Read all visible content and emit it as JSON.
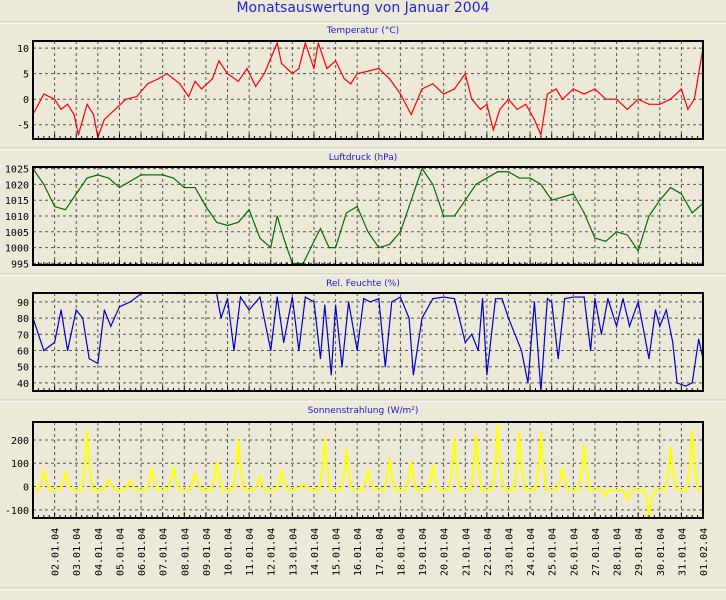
{
  "title": "Monatsauswertung von Januar 2004",
  "x_labels": [
    "02.01.04",
    "03.01.04",
    "04.01.04",
    "05.01.04",
    "06.01.04",
    "07.01.04",
    "08.01.04",
    "09.01.04",
    "10.01.04",
    "11.01.04",
    "12.01.04",
    "13.01.04",
    "14.01.04",
    "15.01.04",
    "16.01.04",
    "17.01.04",
    "18.01.04",
    "19.01.04",
    "20.01.04",
    "21.01.04",
    "22.01.04",
    "23.01.04",
    "24.01.04",
    "25.01.04",
    "26.01.04",
    "27.01.04",
    "28.01.04",
    "29.01.04",
    "30.01.04",
    "31.01.04",
    "01.02.04"
  ],
  "chart_data": [
    {
      "type": "line",
      "title": "Temperatur (°C)",
      "color": "#ff0000",
      "xlim": [
        1,
        32
      ],
      "ylim": [
        -7.8,
        11.4
      ],
      "yticks": [
        10,
        5,
        0,
        -5
      ],
      "x": [
        1,
        1.5,
        2,
        2.3,
        2.6,
        2.9,
        3.1,
        3.5,
        3.8,
        4.0,
        4.3,
        4.8,
        5.3,
        5.8,
        6.3,
        6.8,
        7.2,
        7.8,
        8.2,
        8.5,
        8.8,
        9.3,
        9.6,
        10,
        10.5,
        10.9,
        11.3,
        11.7,
        12.2,
        12.3,
        12.5,
        13,
        13.3,
        13.6,
        14,
        14.2,
        14.6,
        15,
        15.4,
        15.7,
        16,
        16.5,
        17,
        17.5,
        18,
        18.5,
        19,
        19.5,
        20,
        20.5,
        21,
        21.3,
        21.7,
        22,
        22.3,
        22.6,
        23,
        23.4,
        23.8,
        24.2,
        24.5,
        24.8,
        25.2,
        25.5,
        26,
        26.5,
        27,
        27.5,
        28,
        28.5,
        29,
        29.5,
        30,
        30.5,
        31,
        31.3,
        31.6,
        31.8,
        32
      ],
      "y": [
        -3,
        1,
        0,
        -2,
        -1,
        -3,
        -7,
        -1,
        -3,
        -7.5,
        -4,
        -2,
        0,
        0.5,
        3,
        4,
        5,
        3,
        0.5,
        3.5,
        2,
        4,
        7.5,
        5,
        3.5,
        6,
        2.5,
        5,
        10,
        11,
        7,
        5,
        6,
        11,
        6,
        11,
        6,
        7.5,
        4,
        3,
        5,
        5.5,
        6,
        4,
        1,
        -3,
        2,
        3,
        1,
        2,
        5,
        0,
        -2,
        -1,
        -6,
        -2,
        0,
        -2,
        -1,
        -4,
        -7,
        1,
        2,
        0,
        2,
        1,
        2,
        0,
        0,
        -2,
        0,
        -1,
        -1,
        0,
        2,
        -2,
        0,
        5,
        10
      ]
    },
    {
      "type": "line",
      "title": "Luftdruck (hPa)",
      "color": "#007000",
      "xlim": [
        1,
        32
      ],
      "ylim": [
        994.5,
        1025.5
      ],
      "yticks": [
        1025,
        1020,
        1015,
        1010,
        1005,
        1000,
        995
      ],
      "x": [
        1,
        1.5,
        2,
        2.5,
        3,
        3.5,
        4,
        4.5,
        5,
        5.5,
        6,
        7,
        7.5,
        8,
        8.5,
        9,
        9.5,
        10,
        10.5,
        11,
        11.5,
        12,
        12.3,
        12.6,
        13,
        13.5,
        14,
        14.3,
        14.7,
        15,
        15.5,
        16,
        16.5,
        17,
        17.5,
        18,
        18.5,
        19,
        19.5,
        20,
        20.5,
        21,
        21.5,
        22,
        22.5,
        23,
        23.5,
        24,
        24.5,
        25,
        25.5,
        26,
        26.5,
        27,
        27.5,
        28,
        28.5,
        29,
        29.5,
        30,
        30.5,
        31,
        31.5,
        32
      ],
      "y": [
        1025,
        1020,
        1013,
        1012,
        1017,
        1022,
        1023,
        1022,
        1019,
        1021,
        1023,
        1023,
        1022,
        1019,
        1019,
        1013,
        1008,
        1007,
        1008,
        1012,
        1003,
        1000,
        1010,
        1003,
        995,
        995,
        1002,
        1006,
        1000,
        1000,
        1011,
        1013,
        1005,
        1000,
        1001,
        1005,
        1015,
        1025,
        1020,
        1010,
        1010,
        1015,
        1020,
        1022,
        1024,
        1024,
        1022,
        1022,
        1020,
        1015,
        1016,
        1017,
        1011,
        1003,
        1002,
        1005,
        1004,
        999,
        1010,
        1015,
        1019,
        1017,
        1011,
        1014
      ]
    },
    {
      "type": "line",
      "title": "Rel. Feuchte (%)",
      "color": "#0000cc",
      "xlim": [
        1,
        32
      ],
      "ylim": [
        35,
        95.5
      ],
      "yticks": [
        90,
        80,
        70,
        60,
        50,
        40
      ],
      "x": [
        1,
        1.5,
        2,
        2.3,
        2.6,
        3,
        3.3,
        3.6,
        4,
        4.3,
        4.6,
        5,
        5.5,
        6,
        9.5,
        9.7,
        10,
        10.3,
        10.6,
        11,
        11.5,
        12,
        12.3,
        12.6,
        13,
        13.3,
        13.6,
        14,
        14.3,
        14.5,
        14.8,
        15,
        15.3,
        15.6,
        16,
        16.3,
        16.6,
        17,
        17.3,
        17.6,
        18,
        18.4,
        18.6,
        19,
        19.5,
        20,
        20.5,
        21,
        21.3,
        21.6,
        21.8,
        22,
        22.4,
        22.7,
        23,
        23.3,
        23.6,
        23.9,
        24.2,
        24.5,
        24.8,
        25,
        25.3,
        25.6,
        26,
        26.5,
        26.8,
        27,
        27.3,
        27.6,
        28,
        28.3,
        28.6,
        29,
        29.5,
        29.8,
        30,
        30.3,
        30.6,
        30.8,
        31.2,
        31.5,
        31.8,
        32
      ],
      "y": [
        80,
        60,
        65,
        85,
        60,
        85,
        80,
        55,
        52,
        85,
        75,
        87,
        90,
        95,
        95,
        80,
        92,
        60,
        93,
        85,
        93,
        60,
        93,
        65,
        93,
        60,
        93,
        90,
        55,
        88,
        45,
        88,
        50,
        90,
        60,
        92,
        90,
        92,
        50,
        90,
        93,
        80,
        45,
        80,
        92,
        93,
        92,
        65,
        70,
        60,
        92,
        45,
        92,
        92,
        80,
        70,
        60,
        40,
        90,
        35,
        92,
        90,
        55,
        92,
        93,
        93,
        60,
        92,
        70,
        92,
        75,
        92,
        75,
        90,
        55,
        85,
        75,
        85,
        65,
        40,
        38,
        40,
        67,
        55
      ],
      "gap": [
        6,
        9.5
      ]
    },
    {
      "type": "area",
      "title": "Sonnenstrahlung (W/m²)",
      "color": "#ffff00",
      "xlim": [
        1,
        32
      ],
      "ylim": [
        -135,
        277
      ],
      "yticks": [
        200,
        100,
        0,
        -100
      ],
      "baseline": -15,
      "x": [
        1.5,
        2.5,
        3.5,
        4.5,
        5.5,
        6.5,
        7.5,
        8.5,
        9.5,
        10.5,
        11.5,
        12.5,
        13.5,
        14.5,
        15.5,
        16.5,
        17.5,
        18.5,
        19.5,
        20.5,
        21.5,
        22.5,
        23.5,
        24.5,
        25.5,
        26.5,
        27.5,
        28.5,
        29.5,
        30.5,
        31.5
      ],
      "y": [
        70,
        65,
        240,
        30,
        25,
        80,
        85,
        60,
        105,
        200,
        45,
        70,
        10,
        210,
        160,
        70,
        120,
        110,
        90,
        210,
        220,
        270,
        230,
        230,
        80,
        180,
        -40,
        -60,
        -140,
        170,
        240
      ]
    }
  ]
}
